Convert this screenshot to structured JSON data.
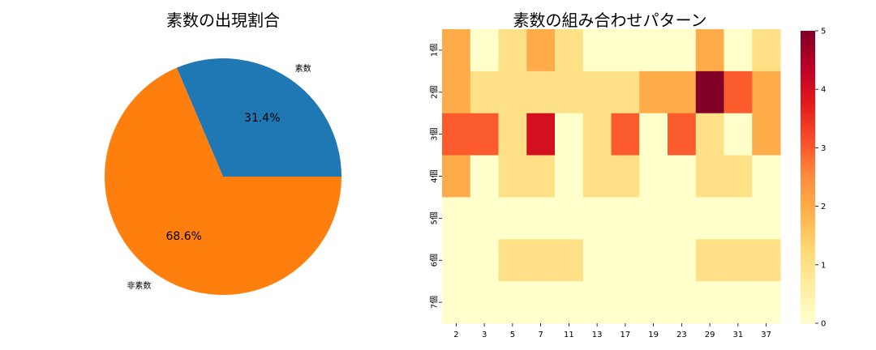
{
  "chart_data": [
    {
      "type": "pie",
      "title": "素数の出現割合",
      "labels": [
        "素数",
        "非素数"
      ],
      "values": [
        31.4,
        68.6
      ],
      "value_labels": [
        "31.4%",
        "68.6%"
      ],
      "colors": [
        "#1f77b4",
        "#ff7f0e"
      ],
      "start_angle_deg": 0,
      "direction": "counterclockwise"
    },
    {
      "type": "heatmap",
      "title": "素数の組み合わせパターン",
      "x_categories": [
        "2",
        "3",
        "5",
        "7",
        "11",
        "13",
        "17",
        "19",
        "23",
        "29",
        "31",
        "37"
      ],
      "y_categories": [
        "1個",
        "2個",
        "3個",
        "4個",
        "5個",
        "6個",
        "7個"
      ],
      "values": [
        [
          2,
          0,
          1,
          2,
          1,
          0,
          0,
          0,
          0,
          2,
          0,
          1
        ],
        [
          2,
          1,
          1,
          1,
          1,
          1,
          1,
          2,
          2,
          5,
          3,
          2
        ],
        [
          3,
          3,
          1,
          4,
          0,
          1,
          3,
          0,
          3,
          1,
          0,
          2
        ],
        [
          2,
          0,
          1,
          1,
          0,
          1,
          1,
          0,
          0,
          1,
          1,
          0
        ],
        [
          0,
          0,
          0,
          0,
          0,
          0,
          0,
          0,
          0,
          0,
          0,
          0
        ],
        [
          0,
          0,
          1,
          1,
          1,
          0,
          0,
          0,
          0,
          1,
          1,
          1
        ],
        [
          0,
          0,
          0,
          0,
          0,
          0,
          0,
          0,
          0,
          0,
          0,
          0
        ]
      ],
      "colormap": "YlOrRd",
      "vmin": 0,
      "vmax": 5,
      "colorbar_ticks": [
        "0",
        "1",
        "2",
        "3",
        "4",
        "5"
      ]
    }
  ]
}
